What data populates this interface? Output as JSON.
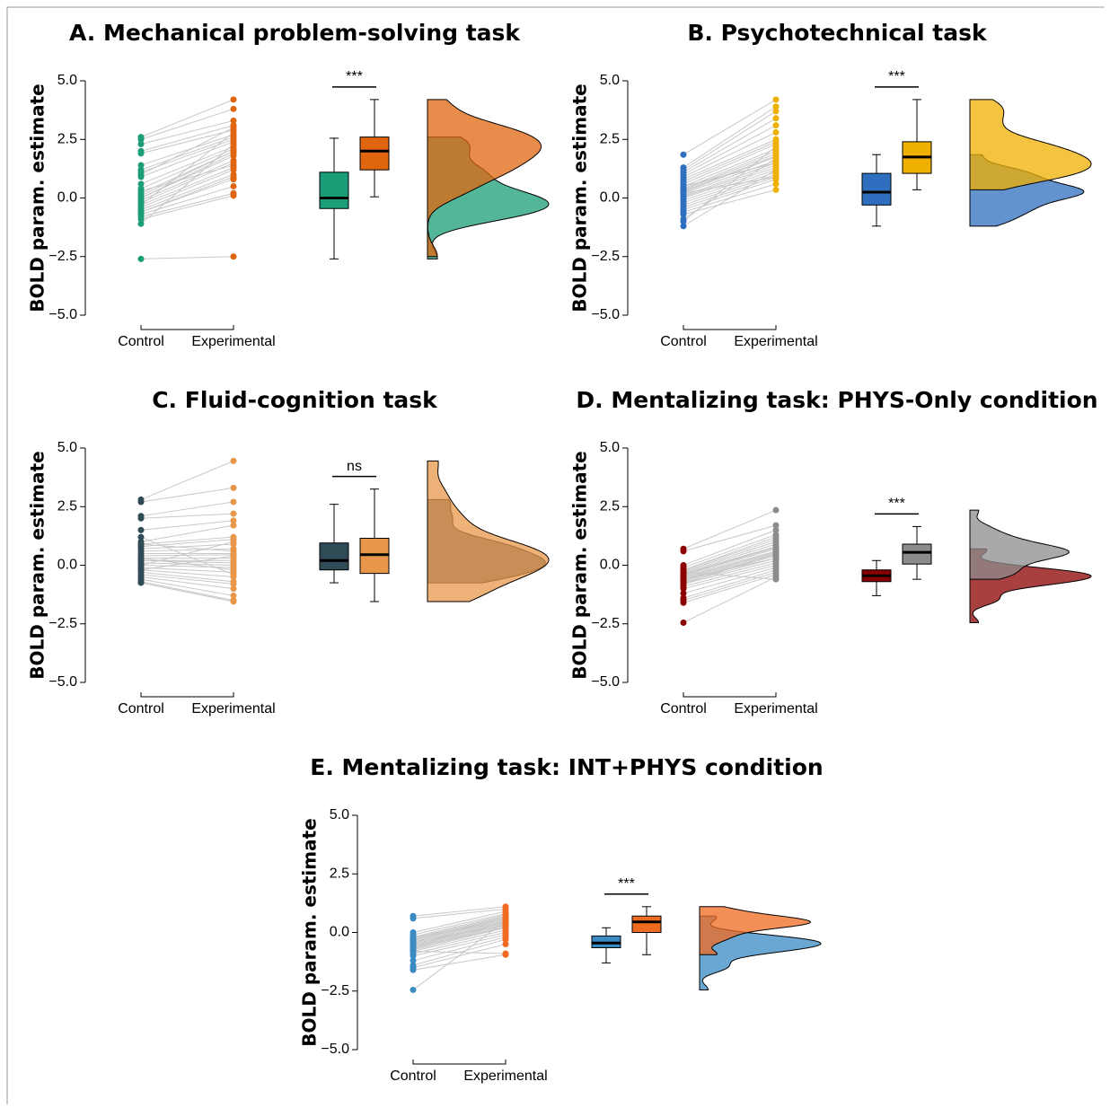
{
  "chart_data": [
    {
      "type": "raincloud",
      "title": "A. Mechanical problem-solving task",
      "ylabel": "BOLD param. estimate",
      "ylim": [
        -5,
        5
      ],
      "yticks": [
        {
          "value": 5,
          "label": "5.0"
        },
        {
          "value": 2.5,
          "label": "2.5"
        },
        {
          "value": 0,
          "label": "0.0"
        },
        {
          "value": -2.5,
          "label": "−2.5"
        },
        {
          "value": -5,
          "label": "−5.0"
        }
      ],
      "significance": "***",
      "series": [
        {
          "name": "Control",
          "color": "#1b9e77",
          "values": [
            2.6,
            2.5,
            2.3,
            2.0,
            1.9,
            1.4,
            1.2,
            1.1,
            0.9,
            0.6,
            0.4,
            0.2,
            0.1,
            0.0,
            0.0,
            -0.1,
            -0.2,
            -0.3,
            -0.4,
            -0.5,
            -0.6,
            -0.7,
            -0.8,
            -0.9,
            -1.1,
            -0.3,
            0.3,
            -0.6,
            1.0,
            -2.6
          ],
          "box": {
            "min": -2.6,
            "q1": -0.45,
            "median": 0.0,
            "q3": 1.1,
            "max": 2.55
          }
        },
        {
          "name": "Experimental",
          "color": "#e0650f",
          "values": [
            4.2,
            3.8,
            3.3,
            3.1,
            2.9,
            2.7,
            2.6,
            2.5,
            2.4,
            2.2,
            2.1,
            2.0,
            2.0,
            1.9,
            1.8,
            1.6,
            1.5,
            1.3,
            1.2,
            1.0,
            0.8,
            0.5,
            0.2,
            0.1,
            2.3,
            2.8,
            1.4,
            0.9,
            3.0,
            -2.5
          ],
          "box": {
            "min": 0.05,
            "q1": 1.2,
            "median": 2.0,
            "q3": 2.6,
            "max": 4.2
          }
        }
      ]
    },
    {
      "type": "raincloud",
      "title": "B. Psychotechnical task",
      "ylabel": "BOLD param. estimate",
      "ylim": [
        -5,
        5
      ],
      "yticks": [
        {
          "value": 5,
          "label": "5.0"
        },
        {
          "value": 2.5,
          "label": "2.5"
        },
        {
          "value": 0,
          "label": "0.0"
        },
        {
          "value": -2.5,
          "label": "−2.5"
        },
        {
          "value": -5,
          "label": "−5.0"
        }
      ],
      "significance": "***",
      "series": [
        {
          "name": "Control",
          "color": "#2f6fbf",
          "values": [
            1.85,
            1.3,
            1.2,
            1.1,
            1.0,
            0.9,
            0.8,
            0.7,
            0.6,
            0.5,
            0.4,
            0.35,
            0.3,
            0.25,
            0.2,
            0.1,
            0.05,
            0.0,
            -0.1,
            -0.2,
            -0.3,
            -0.4,
            -0.5,
            -0.6,
            -0.7,
            -0.9,
            -1.0,
            -1.2,
            0.5,
            0.2
          ],
          "box": {
            "min": -1.2,
            "q1": -0.3,
            "median": 0.25,
            "q3": 1.05,
            "max": 1.85
          }
        },
        {
          "name": "Experimental",
          "color": "#f0b000",
          "values": [
            4.2,
            3.9,
            3.7,
            3.4,
            3.1,
            2.8,
            2.5,
            2.4,
            2.3,
            2.1,
            2.0,
            1.9,
            1.8,
            1.75,
            1.6,
            1.5,
            1.4,
            1.3,
            1.2,
            1.1,
            1.0,
            0.9,
            0.8,
            0.6,
            0.35,
            1.7,
            2.2,
            1.2,
            1.5,
            0.9
          ],
          "box": {
            "min": 0.35,
            "q1": 1.05,
            "median": 1.75,
            "q3": 2.4,
            "max": 4.2
          }
        }
      ]
    },
    {
      "type": "raincloud",
      "title": "C. Fluid-cognition task",
      "ylabel": "BOLD param. estimate",
      "ylim": [
        -5,
        5
      ],
      "yticks": [
        {
          "value": 5,
          "label": "5.0"
        },
        {
          "value": 2.5,
          "label": "2.5"
        },
        {
          "value": 0,
          "label": "0.0"
        },
        {
          "value": -2.5,
          "label": "−2.5"
        },
        {
          "value": -5,
          "label": "−5.0"
        }
      ],
      "significance": "ns",
      "series": [
        {
          "name": "Control",
          "color": "#2f4b55",
          "values": [
            2.8,
            2.7,
            2.1,
            2.0,
            1.5,
            1.0,
            0.9,
            0.8,
            0.7,
            0.6,
            0.5,
            0.4,
            0.3,
            0.2,
            0.2,
            0.1,
            0.0,
            -0.1,
            -0.2,
            -0.3,
            -0.4,
            -0.5,
            -0.6,
            -0.7,
            -0.75,
            0.9,
            0.3,
            -0.2,
            0.0,
            1.2
          ],
          "box": {
            "min": -0.75,
            "q1": -0.2,
            "median": 0.2,
            "q3": 0.95,
            "max": 2.6
          }
        },
        {
          "name": "Experimental",
          "color": "#e8974a",
          "values": [
            4.45,
            3.3,
            2.7,
            2.2,
            1.9,
            1.7,
            1.2,
            1.1,
            0.9,
            0.7,
            0.5,
            0.45,
            0.3,
            0.2,
            0.1,
            0.0,
            -0.1,
            -0.3,
            -0.5,
            -0.7,
            -0.8,
            -1.0,
            -1.3,
            -1.5,
            -1.55,
            0.6,
            -0.2,
            0.4,
            1.0,
            -0.4
          ],
          "box": {
            "min": -1.55,
            "q1": -0.35,
            "median": 0.45,
            "q3": 1.15,
            "max": 3.25
          }
        }
      ]
    },
    {
      "type": "raincloud",
      "title": "D. Mentalizing task: PHYS-Only condition",
      "ylabel": "BOLD param. estimate",
      "ylim": [
        -5,
        5
      ],
      "yticks": [
        {
          "value": 5,
          "label": "5.0"
        },
        {
          "value": 2.5,
          "label": "2.5"
        },
        {
          "value": 0,
          "label": "0.0"
        },
        {
          "value": -2.5,
          "label": "−2.5"
        },
        {
          "value": -5,
          "label": "−5.0"
        }
      ],
      "significance": "***",
      "series": [
        {
          "name": "Control",
          "color": "#8b0000",
          "values": [
            0.7,
            0.6,
            0.0,
            -0.1,
            -0.2,
            -0.25,
            -0.3,
            -0.35,
            -0.4,
            -0.45,
            -0.5,
            -0.55,
            -0.6,
            -0.65,
            -0.7,
            -0.75,
            -0.8,
            -0.9,
            -1.0,
            -1.2,
            -1.4,
            -1.5,
            -1.6,
            -2.45,
            -0.3,
            -0.5,
            -0.4,
            -0.6,
            -0.2,
            -0.8
          ],
          "box": {
            "min": -1.3,
            "q1": -0.7,
            "median": -0.45,
            "q3": -0.2,
            "max": 0.2
          }
        },
        {
          "name": "Experimental",
          "color": "#8c8c8c",
          "values": [
            2.35,
            1.7,
            1.5,
            1.3,
            1.1,
            1.0,
            0.9,
            0.8,
            0.75,
            0.7,
            0.6,
            0.55,
            0.5,
            0.45,
            0.4,
            0.3,
            0.2,
            0.1,
            0.0,
            -0.1,
            -0.2,
            -0.3,
            -0.4,
            -0.5,
            -0.6,
            0.6,
            0.8,
            0.3,
            1.2,
            0.5
          ],
          "box": {
            "min": -0.6,
            "q1": 0.05,
            "median": 0.55,
            "q3": 0.9,
            "max": 1.65
          }
        }
      ]
    },
    {
      "type": "raincloud",
      "title": "E. Mentalizing task: INT+PHYS condition",
      "ylabel": "BOLD param. estimate",
      "ylim": [
        -5,
        5
      ],
      "yticks": [
        {
          "value": 5,
          "label": "5.0"
        },
        {
          "value": 2.5,
          "label": "2.5"
        },
        {
          "value": 0,
          "label": "0.0"
        },
        {
          "value": -2.5,
          "label": "−2.5"
        },
        {
          "value": -5,
          "label": "−5.0"
        }
      ],
      "significance": "***",
      "series": [
        {
          "name": "Control",
          "color": "#3a8ac4",
          "values": [
            0.7,
            0.6,
            0.0,
            -0.1,
            -0.2,
            -0.25,
            -0.3,
            -0.35,
            -0.4,
            -0.45,
            -0.5,
            -0.55,
            -0.6,
            -0.65,
            -0.7,
            -0.75,
            -0.8,
            -0.9,
            -1.0,
            -1.2,
            -1.4,
            -1.5,
            -1.6,
            -2.45,
            -0.3,
            -0.5,
            -0.4,
            -0.6,
            -0.2,
            -0.8
          ],
          "box": {
            "min": -1.3,
            "q1": -0.65,
            "median": -0.45,
            "q3": -0.15,
            "max": 0.2
          }
        },
        {
          "name": "Experimental",
          "color": "#f06a20",
          "values": [
            1.1,
            1.0,
            0.9,
            0.8,
            0.75,
            0.7,
            0.65,
            0.6,
            0.55,
            0.5,
            0.45,
            0.4,
            0.35,
            0.3,
            0.25,
            0.2,
            0.1,
            0.0,
            -0.1,
            -0.2,
            -0.3,
            -0.5,
            -0.95,
            0.5,
            0.6,
            0.4,
            0.3,
            0.2,
            0.45,
            -0.9
          ],
          "box": {
            "min": -0.95,
            "q1": 0.0,
            "median": 0.45,
            "q3": 0.7,
            "max": 1.1
          }
        }
      ]
    }
  ]
}
